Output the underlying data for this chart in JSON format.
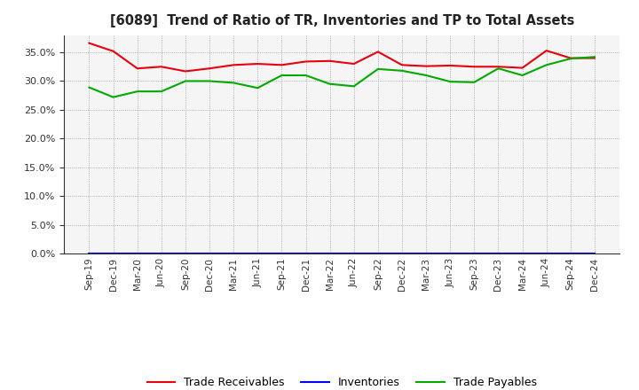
{
  "title": "[6089]  Trend of Ratio of TR, Inventories and TP to Total Assets",
  "x_labels": [
    "Sep-19",
    "Dec-19",
    "Mar-20",
    "Jun-20",
    "Sep-20",
    "Dec-20",
    "Mar-21",
    "Jun-21",
    "Sep-21",
    "Dec-21",
    "Mar-22",
    "Jun-22",
    "Sep-22",
    "Dec-22",
    "Mar-23",
    "Jun-23",
    "Sep-23",
    "Dec-23",
    "Mar-24",
    "Jun-24",
    "Sep-24",
    "Dec-24"
  ],
  "trade_receivables": [
    0.366,
    0.352,
    0.322,
    0.325,
    0.317,
    0.322,
    0.328,
    0.33,
    0.328,
    0.334,
    0.335,
    0.33,
    0.351,
    0.328,
    0.326,
    0.327,
    0.325,
    0.325,
    0.323,
    0.353,
    0.34,
    0.34
  ],
  "inventories": [
    0.0,
    0.0,
    0.0,
    0.0,
    0.0,
    0.0,
    0.0,
    0.0,
    0.0,
    0.0,
    0.0,
    0.0,
    0.0,
    0.0,
    0.0,
    0.0,
    0.0,
    0.0,
    0.0,
    0.0,
    0.0,
    0.0
  ],
  "trade_payables": [
    0.289,
    0.272,
    0.282,
    0.282,
    0.3,
    0.3,
    0.297,
    0.288,
    0.31,
    0.31,
    0.295,
    0.291,
    0.321,
    0.318,
    0.31,
    0.299,
    0.298,
    0.322,
    0.31,
    0.328,
    0.339,
    0.342
  ],
  "tr_color": "#e8000d",
  "inv_color": "#0000ff",
  "tp_color": "#00aa00",
  "ylim": [
    0.0,
    0.38
  ],
  "yticks": [
    0.0,
    0.05,
    0.1,
    0.15,
    0.2,
    0.25,
    0.3,
    0.35
  ],
  "bg_color": "#ffffff",
  "plot_bg_color": "#f5f5f5",
  "grid_color": "#999999",
  "legend_labels": [
    "Trade Receivables",
    "Inventories",
    "Trade Payables"
  ]
}
